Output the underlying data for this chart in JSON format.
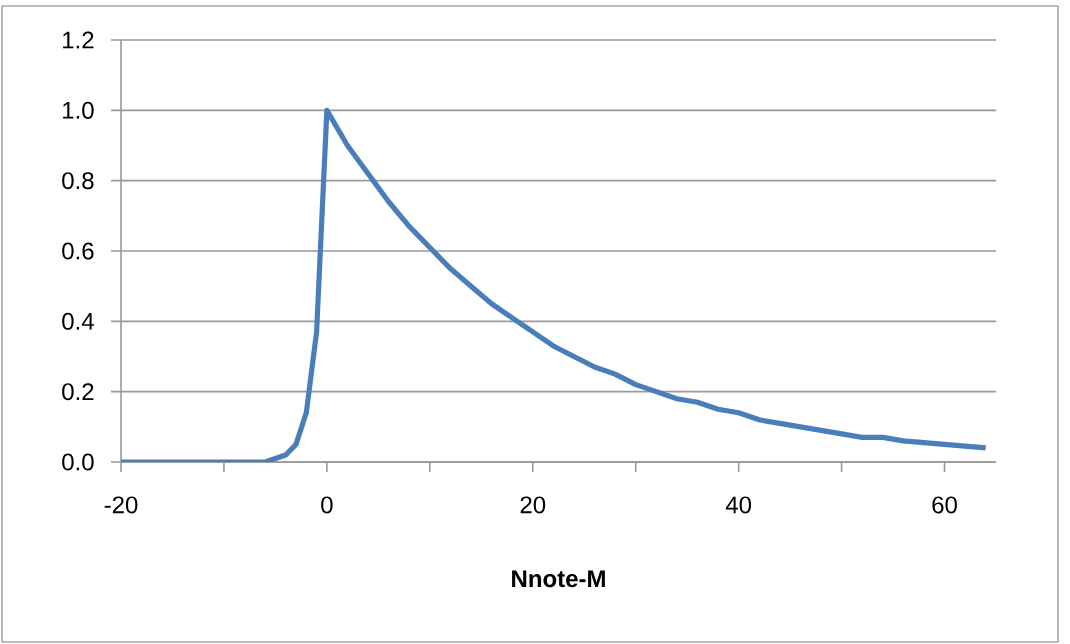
{
  "chart_data": {
    "type": "line",
    "xlabel": "Nnote-M",
    "x": [
      -20,
      -10,
      -6,
      -5,
      -4,
      -3,
      -2,
      -1,
      0,
      2,
      4,
      6,
      8,
      10,
      12,
      14,
      16,
      18,
      20,
      22,
      24,
      26,
      28,
      30,
      32,
      34,
      36,
      38,
      40,
      42,
      44,
      46,
      48,
      50,
      52,
      54,
      56,
      58,
      60,
      62,
      64
    ],
    "values": [
      0,
      0,
      0,
      0.01,
      0.02,
      0.05,
      0.14,
      0.37,
      1.0,
      0.9,
      0.82,
      0.74,
      0.67,
      0.61,
      0.55,
      0.5,
      0.45,
      0.41,
      0.37,
      0.33,
      0.3,
      0.27,
      0.25,
      0.22,
      0.2,
      0.18,
      0.17,
      0.15,
      0.14,
      0.12,
      0.11,
      0.1,
      0.09,
      0.08,
      0.07,
      0.07,
      0.06,
      0.055,
      0.05,
      0.045,
      0.04
    ],
    "color": "#4a7ebb",
    "xlim": [
      -20,
      65
    ],
    "xticks": [
      -20,
      {
        "value": -10,
        "label": null
      },
      0,
      {
        "value": 10,
        "label": null
      },
      20,
      {
        "value": 30,
        "label": null
      },
      40,
      {
        "value": 50,
        "label": null
      },
      60
    ],
    "ylim": [
      0,
      1.2
    ],
    "yticks": [
      {
        "value": 0,
        "label": "0.0"
      },
      {
        "value": 0.2,
        "label": "0.2"
      },
      {
        "value": 0.4,
        "label": "0.4"
      },
      {
        "value": 0.6,
        "label": "0.6"
      },
      {
        "value": 0.8,
        "label": "0.8"
      },
      {
        "value": 1.0,
        "label": "1.0"
      },
      {
        "value": 1.2,
        "label": "1.2"
      }
    ],
    "grid": "y",
    "marker": "none",
    "line_style": "solid"
  }
}
